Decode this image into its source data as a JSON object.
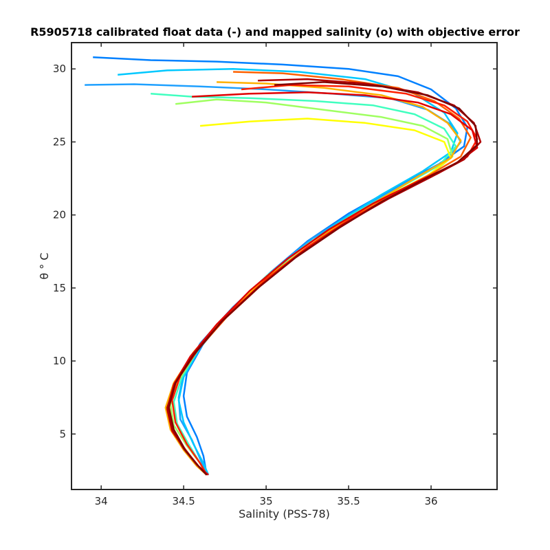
{
  "chart_data": {
    "type": "line",
    "title": "R5905718 calibrated float data (-) and mapped salinity (o) with objective error",
    "xlabel": "Salinity (PSS-78)",
    "ylabel": "θ ° C",
    "xlim": [
      33.82,
      36.4
    ],
    "ylim": [
      1.2,
      31.8
    ],
    "xticks": [
      "34",
      "34.5",
      "35",
      "35.5",
      "36"
    ],
    "yticks": [
      "5",
      "10",
      "15",
      "20",
      "25",
      "30"
    ],
    "xtick_values": [
      34,
      34.5,
      35,
      35.5,
      36
    ],
    "ytick_values": [
      5,
      10,
      15,
      20,
      25,
      30
    ],
    "grid": false,
    "legend": "none",
    "colors": {
      "axis": "#262626",
      "colormap": [
        "#00008f",
        "#0000ff",
        "#0080ff",
        "#00ffff",
        "#80ff80",
        "#ffff00",
        "#ff8000",
        "#ff0000",
        "#800000"
      ]
    },
    "series": [
      {
        "color": "#0080ff",
        "points": [
          [
            33.95,
            30.8
          ],
          [
            34.3,
            30.6
          ],
          [
            34.7,
            30.5
          ],
          [
            35.1,
            30.3
          ],
          [
            35.5,
            30.0
          ],
          [
            35.8,
            29.5
          ],
          [
            36.0,
            28.6
          ],
          [
            36.15,
            27.3
          ],
          [
            36.22,
            26.0
          ],
          [
            36.2,
            24.7
          ],
          [
            36.05,
            23.5
          ],
          [
            35.8,
            22.0
          ],
          [
            35.5,
            20.1
          ],
          [
            35.25,
            18.2
          ],
          [
            35.02,
            16.0
          ],
          [
            34.8,
            13.6
          ],
          [
            34.62,
            11.2
          ],
          [
            34.52,
            9.2
          ],
          [
            34.5,
            7.6
          ],
          [
            34.52,
            6.2
          ],
          [
            34.58,
            4.8
          ],
          [
            34.62,
            3.5
          ],
          [
            34.64,
            2.2
          ]
        ]
      },
      {
        "color": "#1ea0ff",
        "points": [
          [
            33.9,
            28.9
          ],
          [
            34.2,
            28.95
          ],
          [
            34.6,
            28.8
          ],
          [
            35.0,
            28.6
          ],
          [
            35.4,
            28.3
          ],
          [
            35.75,
            28.0
          ],
          [
            35.98,
            27.2
          ],
          [
            36.12,
            26.2
          ],
          [
            36.18,
            25.0
          ],
          [
            36.1,
            23.8
          ],
          [
            35.85,
            22.2
          ],
          [
            35.55,
            20.3
          ],
          [
            35.28,
            18.4
          ],
          [
            35.03,
            16.1
          ],
          [
            34.8,
            13.7
          ],
          [
            34.6,
            11.2
          ],
          [
            34.5,
            9.1
          ],
          [
            34.47,
            7.5
          ],
          [
            34.48,
            6.0
          ],
          [
            34.55,
            4.6
          ],
          [
            34.6,
            3.3
          ],
          [
            34.64,
            2.2
          ]
        ]
      },
      {
        "color": "#00c8ff",
        "points": [
          [
            34.1,
            29.6
          ],
          [
            34.4,
            29.9
          ],
          [
            34.8,
            30.0
          ],
          [
            35.2,
            29.8
          ],
          [
            35.6,
            29.3
          ],
          [
            35.9,
            28.3
          ],
          [
            36.08,
            27.0
          ],
          [
            36.16,
            25.6
          ],
          [
            36.12,
            24.3
          ],
          [
            35.95,
            23.0
          ],
          [
            35.7,
            21.4
          ],
          [
            35.45,
            19.6
          ],
          [
            35.2,
            17.6
          ],
          [
            34.98,
            15.5
          ],
          [
            34.76,
            13.1
          ],
          [
            34.6,
            10.9
          ],
          [
            34.5,
            8.9
          ],
          [
            34.47,
            7.3
          ],
          [
            34.5,
            5.8
          ],
          [
            34.56,
            4.3
          ],
          [
            34.62,
            3.0
          ],
          [
            34.65,
            2.2
          ]
        ]
      },
      {
        "color": "#40ffbf",
        "points": [
          [
            34.3,
            28.3
          ],
          [
            34.55,
            28.1
          ],
          [
            34.9,
            28.0
          ],
          [
            35.3,
            27.8
          ],
          [
            35.65,
            27.5
          ],
          [
            35.9,
            26.9
          ],
          [
            36.08,
            25.9
          ],
          [
            36.15,
            24.7
          ],
          [
            36.05,
            23.4
          ],
          [
            35.8,
            21.8
          ],
          [
            35.52,
            20.0
          ],
          [
            35.25,
            18.0
          ],
          [
            35.0,
            15.8
          ],
          [
            34.78,
            13.4
          ],
          [
            34.6,
            11.0
          ],
          [
            34.49,
            8.9
          ],
          [
            34.44,
            7.2
          ],
          [
            34.46,
            5.7
          ],
          [
            34.53,
            4.3
          ],
          [
            34.6,
            3.0
          ],
          [
            34.64,
            2.2
          ]
        ]
      },
      {
        "color": "#9fff60",
        "points": [
          [
            34.45,
            27.6
          ],
          [
            34.7,
            27.9
          ],
          [
            35.0,
            27.7
          ],
          [
            35.35,
            27.2
          ],
          [
            35.7,
            26.7
          ],
          [
            35.95,
            26.1
          ],
          [
            36.1,
            25.2
          ],
          [
            36.13,
            24.0
          ],
          [
            36.0,
            22.8
          ],
          [
            35.75,
            21.3
          ],
          [
            35.48,
            19.5
          ],
          [
            35.22,
            17.5
          ],
          [
            34.98,
            15.4
          ],
          [
            34.76,
            13.0
          ],
          [
            34.58,
            10.7
          ],
          [
            34.47,
            8.7
          ],
          [
            34.42,
            7.0
          ],
          [
            34.44,
            5.6
          ],
          [
            34.52,
            4.2
          ],
          [
            34.6,
            3.0
          ],
          [
            34.64,
            2.2
          ]
        ]
      },
      {
        "color": "#ffff00",
        "points": [
          [
            34.6,
            26.1
          ],
          [
            34.9,
            26.4
          ],
          [
            35.25,
            26.6
          ],
          [
            35.6,
            26.3
          ],
          [
            35.9,
            25.8
          ],
          [
            36.08,
            25.0
          ],
          [
            36.12,
            23.9
          ],
          [
            35.98,
            22.7
          ],
          [
            35.72,
            21.2
          ],
          [
            35.45,
            19.4
          ],
          [
            35.2,
            17.4
          ],
          [
            34.96,
            15.3
          ],
          [
            34.74,
            12.9
          ],
          [
            34.56,
            10.6
          ],
          [
            34.45,
            8.6
          ],
          [
            34.4,
            6.9
          ],
          [
            34.42,
            5.4
          ],
          [
            34.5,
            4.0
          ],
          [
            34.58,
            2.9
          ],
          [
            34.64,
            2.2
          ]
        ]
      },
      {
        "color": "#ffb000",
        "points": [
          [
            34.7,
            29.1
          ],
          [
            35.0,
            29.0
          ],
          [
            35.35,
            28.7
          ],
          [
            35.7,
            28.2
          ],
          [
            35.95,
            27.4
          ],
          [
            36.1,
            26.3
          ],
          [
            36.18,
            25.1
          ],
          [
            36.12,
            23.9
          ],
          [
            35.93,
            22.7
          ],
          [
            35.68,
            21.0
          ],
          [
            35.42,
            19.2
          ],
          [
            35.17,
            17.1
          ],
          [
            34.94,
            15.0
          ],
          [
            34.72,
            12.6
          ],
          [
            34.55,
            10.4
          ],
          [
            34.44,
            8.5
          ],
          [
            34.39,
            6.8
          ],
          [
            34.42,
            5.3
          ],
          [
            34.5,
            3.9
          ],
          [
            34.58,
            2.8
          ],
          [
            34.64,
            2.2
          ]
        ]
      },
      {
        "color": "#ff6000",
        "points": [
          [
            34.8,
            29.8
          ],
          [
            35.1,
            29.7
          ],
          [
            35.45,
            29.3
          ],
          [
            35.8,
            28.7
          ],
          [
            36.02,
            27.8
          ],
          [
            36.17,
            26.6
          ],
          [
            36.24,
            25.3
          ],
          [
            36.18,
            24.0
          ],
          [
            36.0,
            22.8
          ],
          [
            35.75,
            21.3
          ],
          [
            35.48,
            19.5
          ],
          [
            35.22,
            17.5
          ],
          [
            34.98,
            15.3
          ],
          [
            34.76,
            13.0
          ],
          [
            34.58,
            10.7
          ],
          [
            34.46,
            8.7
          ],
          [
            34.41,
            7.0
          ],
          [
            34.43,
            5.5
          ],
          [
            34.5,
            4.1
          ],
          [
            34.58,
            2.9
          ],
          [
            34.64,
            2.2
          ]
        ]
      },
      {
        "color": "#ff2000",
        "points": [
          [
            34.85,
            28.6
          ],
          [
            35.15,
            28.9
          ],
          [
            35.5,
            28.8
          ],
          [
            35.85,
            28.3
          ],
          [
            36.08,
            27.5
          ],
          [
            36.22,
            26.4
          ],
          [
            36.28,
            25.2
          ],
          [
            36.22,
            24.0
          ],
          [
            36.05,
            22.9
          ],
          [
            35.8,
            21.5
          ],
          [
            35.52,
            19.8
          ],
          [
            35.25,
            17.8
          ],
          [
            35.0,
            15.6
          ],
          [
            34.78,
            13.3
          ],
          [
            34.6,
            11.0
          ],
          [
            34.48,
            9.0
          ],
          [
            34.43,
            7.3
          ],
          [
            34.45,
            5.8
          ],
          [
            34.52,
            4.3
          ],
          [
            34.6,
            3.0
          ],
          [
            34.64,
            2.2
          ]
        ]
      },
      {
        "color": "#e00000",
        "points": [
          [
            34.55,
            28.1
          ],
          [
            34.9,
            28.3
          ],
          [
            35.25,
            28.4
          ],
          [
            35.6,
            28.2
          ],
          [
            35.92,
            27.7
          ],
          [
            36.12,
            26.9
          ],
          [
            36.25,
            25.8
          ],
          [
            36.28,
            24.6
          ],
          [
            36.15,
            23.5
          ],
          [
            35.92,
            22.3
          ],
          [
            35.65,
            20.8
          ],
          [
            35.38,
            19.0
          ],
          [
            35.13,
            17.0
          ],
          [
            34.9,
            14.8
          ],
          [
            34.7,
            12.5
          ],
          [
            34.54,
            10.3
          ],
          [
            34.44,
            8.4
          ],
          [
            34.4,
            6.7
          ],
          [
            34.43,
            5.2
          ],
          [
            34.51,
            3.9
          ],
          [
            34.59,
            2.8
          ],
          [
            34.65,
            2.2
          ]
        ]
      },
      {
        "color": "#b00000",
        "points": [
          [
            34.95,
            29.2
          ],
          [
            35.25,
            29.3
          ],
          [
            35.6,
            29.0
          ],
          [
            35.92,
            28.4
          ],
          [
            36.14,
            27.5
          ],
          [
            36.26,
            26.3
          ],
          [
            36.3,
            25.0
          ],
          [
            36.2,
            23.8
          ],
          [
            36.0,
            22.6
          ],
          [
            35.74,
            21.1
          ],
          [
            35.46,
            19.3
          ],
          [
            35.2,
            17.3
          ],
          [
            34.96,
            15.1
          ],
          [
            34.74,
            12.8
          ],
          [
            34.56,
            10.5
          ],
          [
            34.45,
            8.5
          ],
          [
            34.4,
            6.8
          ],
          [
            34.43,
            5.3
          ],
          [
            34.5,
            4.0
          ],
          [
            34.58,
            2.9
          ],
          [
            34.64,
            2.2
          ]
        ]
      },
      {
        "color": "#800000",
        "points": [
          [
            35.05,
            28.9
          ],
          [
            35.35,
            29.1
          ],
          [
            35.7,
            28.8
          ],
          [
            35.98,
            28.2
          ],
          [
            36.17,
            27.3
          ],
          [
            36.27,
            26.1
          ],
          [
            36.28,
            24.8
          ],
          [
            36.16,
            23.6
          ],
          [
            35.95,
            22.4
          ],
          [
            35.7,
            20.9
          ],
          [
            35.44,
            19.1
          ],
          [
            35.18,
            17.1
          ],
          [
            34.95,
            15.0
          ],
          [
            34.73,
            12.7
          ],
          [
            34.56,
            10.4
          ],
          [
            34.45,
            8.5
          ],
          [
            34.41,
            6.8
          ],
          [
            34.44,
            5.3
          ],
          [
            34.51,
            3.9
          ],
          [
            34.59,
            2.8
          ],
          [
            34.64,
            2.2
          ]
        ]
      }
    ]
  }
}
